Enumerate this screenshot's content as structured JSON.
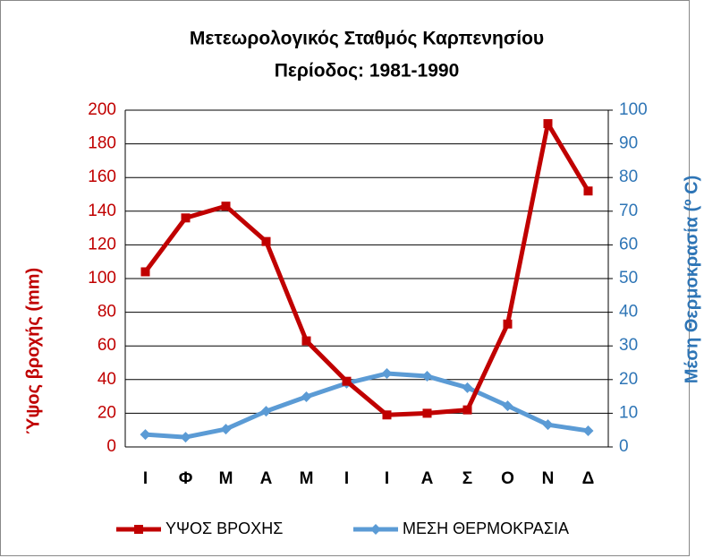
{
  "chart_data": {
    "type": "line",
    "title": "Μετεωρολογικός Σταθμός Καρπενησίου",
    "subtitle": "Περίοδος: 1981-1990",
    "ylabel": "Ύψος βροχής (mm)",
    "y2label": "Μέση Θερμοκρασία (º C)",
    "categories": [
      "Ι",
      "Φ",
      "Μ",
      "Α",
      "Μ",
      "Ι",
      "Ι",
      "Α",
      "Σ",
      "Ο",
      "Ν",
      "Δ"
    ],
    "series": [
      {
        "name": "ΥΨΟΣ ΒΡΟΧΗΣ",
        "color": "#c00000",
        "marker": "square",
        "values": [
          104,
          136,
          143,
          122,
          63,
          39,
          19,
          20,
          22,
          73,
          192,
          152
        ]
      },
      {
        "name": "ΜΕΣΗ ΘΕΡΜΟΚΡΑΣΙΑ",
        "color": "#5b9bd5",
        "marker": "diamond",
        "axis": "y2",
        "values": [
          3.7,
          2.9,
          5.3,
          10.6,
          14.9,
          18.9,
          21.8,
          21,
          17.6,
          12.2,
          6.6,
          4.8
        ]
      }
    ],
    "ylim": [
      0,
      200
    ],
    "yticks": [
      0,
      20,
      40,
      60,
      80,
      100,
      120,
      140,
      160,
      180,
      200
    ],
    "y2lim": [
      0,
      100
    ],
    "y2ticks": [
      0,
      10,
      20,
      30,
      40,
      50,
      60,
      70,
      80,
      90,
      100
    ],
    "grid": true,
    "legend": "bottom"
  }
}
